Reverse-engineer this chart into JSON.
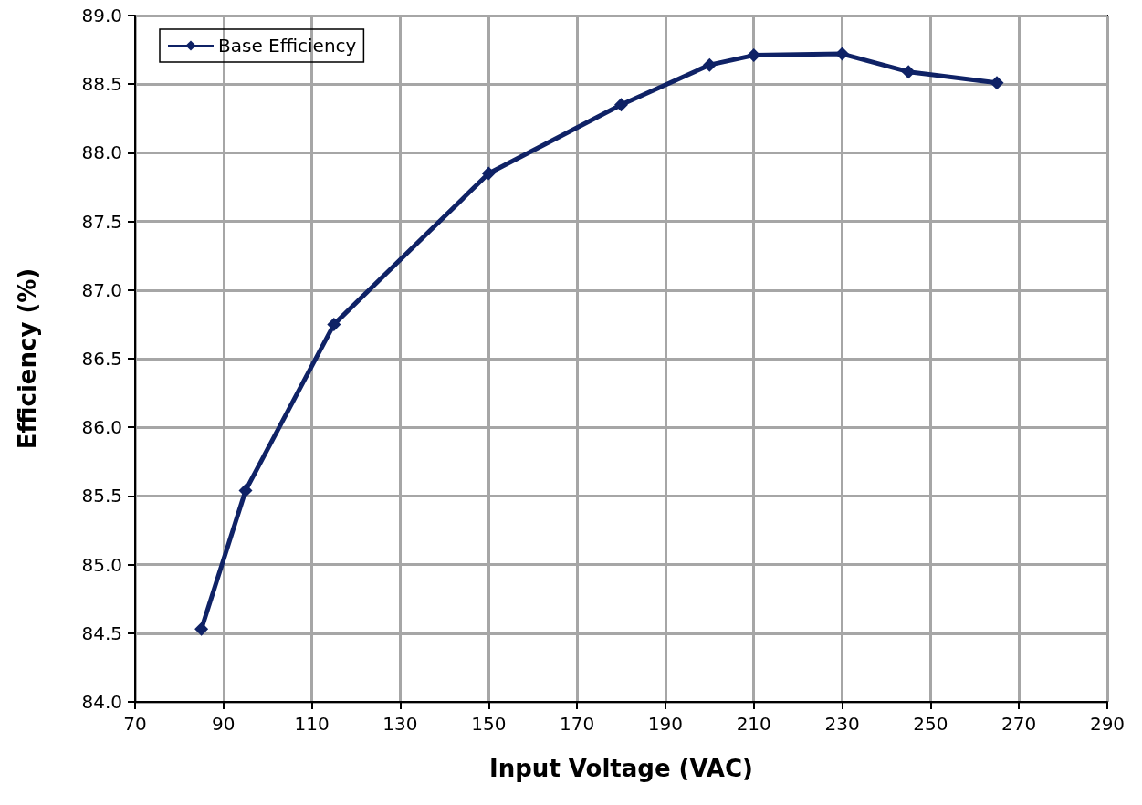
{
  "chart_data": {
    "type": "line",
    "xlabel": "Input Voltage (VAC)",
    "ylabel": "Efficiency (%)",
    "x": [
      85,
      95,
      115,
      150,
      180,
      200,
      210,
      230,
      245,
      265
    ],
    "series": [
      {
        "name": "Base Efficiency",
        "color": "#0f2266",
        "values": [
          84.53,
          85.54,
          86.75,
          87.85,
          88.35,
          88.64,
          88.71,
          88.72,
          88.59,
          88.51
        ]
      }
    ],
    "xlim": [
      70,
      290
    ],
    "xticks": [
      70,
      90,
      110,
      130,
      150,
      170,
      190,
      210,
      230,
      250,
      270,
      290
    ],
    "ylim": [
      84,
      89
    ],
    "yticks": [
      {
        "value": 84,
        "label": "84.0"
      },
      {
        "value": 84.5,
        "label": "84.5"
      },
      {
        "value": 85,
        "label": "85.0"
      },
      {
        "value": 85.5,
        "label": "85.5"
      },
      {
        "value": 86,
        "label": "86.0"
      },
      {
        "value": 86.5,
        "label": "86.5"
      },
      {
        "value": 87,
        "label": "87.0"
      },
      {
        "value": 87.5,
        "label": "87.5"
      },
      {
        "value": 88,
        "label": "88.0"
      },
      {
        "value": 88.5,
        "label": "88.5"
      },
      {
        "value": 89,
        "label": "89.0"
      }
    ],
    "grid": true,
    "legend": "top left",
    "marker": "diamond",
    "line_style": "solid"
  }
}
